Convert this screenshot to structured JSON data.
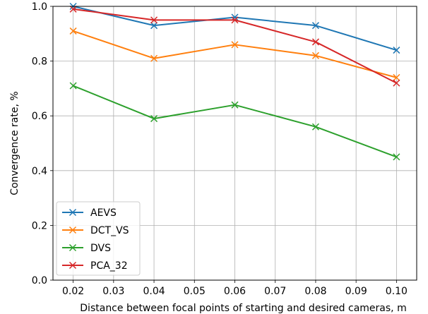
{
  "chart_data": {
    "type": "line",
    "title": "",
    "xlabel": "Distance between focal points of starting and desired cameras, m",
    "ylabel": "Convergence rate, %",
    "xlim": [
      0.015,
      0.105
    ],
    "ylim": [
      0.0,
      1.0
    ],
    "xticks": [
      "0.02",
      "0.03",
      "0.04",
      "0.05",
      "0.06",
      "0.07",
      "0.08",
      "0.09",
      "0.10"
    ],
    "yticks": [
      "0.0",
      "0.2",
      "0.4",
      "0.6",
      "0.8",
      "1.0"
    ],
    "grid": true,
    "legend_position": "lower-left",
    "marker": "x",
    "x": [
      0.02,
      0.04,
      0.06,
      0.08,
      0.1
    ],
    "series": [
      {
        "name": "AEVS",
        "color": "#1f77b4",
        "values": [
          1.0,
          0.93,
          0.96,
          0.93,
          0.84
        ]
      },
      {
        "name": "DCT_VS",
        "color": "#ff7f0e",
        "values": [
          0.91,
          0.81,
          0.86,
          0.82,
          0.74
        ]
      },
      {
        "name": "DVS",
        "color": "#2ca02c",
        "values": [
          0.71,
          0.59,
          0.64,
          0.56,
          0.45
        ]
      },
      {
        "name": "PCA_32",
        "color": "#d62728",
        "values": [
          0.99,
          0.95,
          0.95,
          0.87,
          0.72
        ]
      }
    ]
  }
}
